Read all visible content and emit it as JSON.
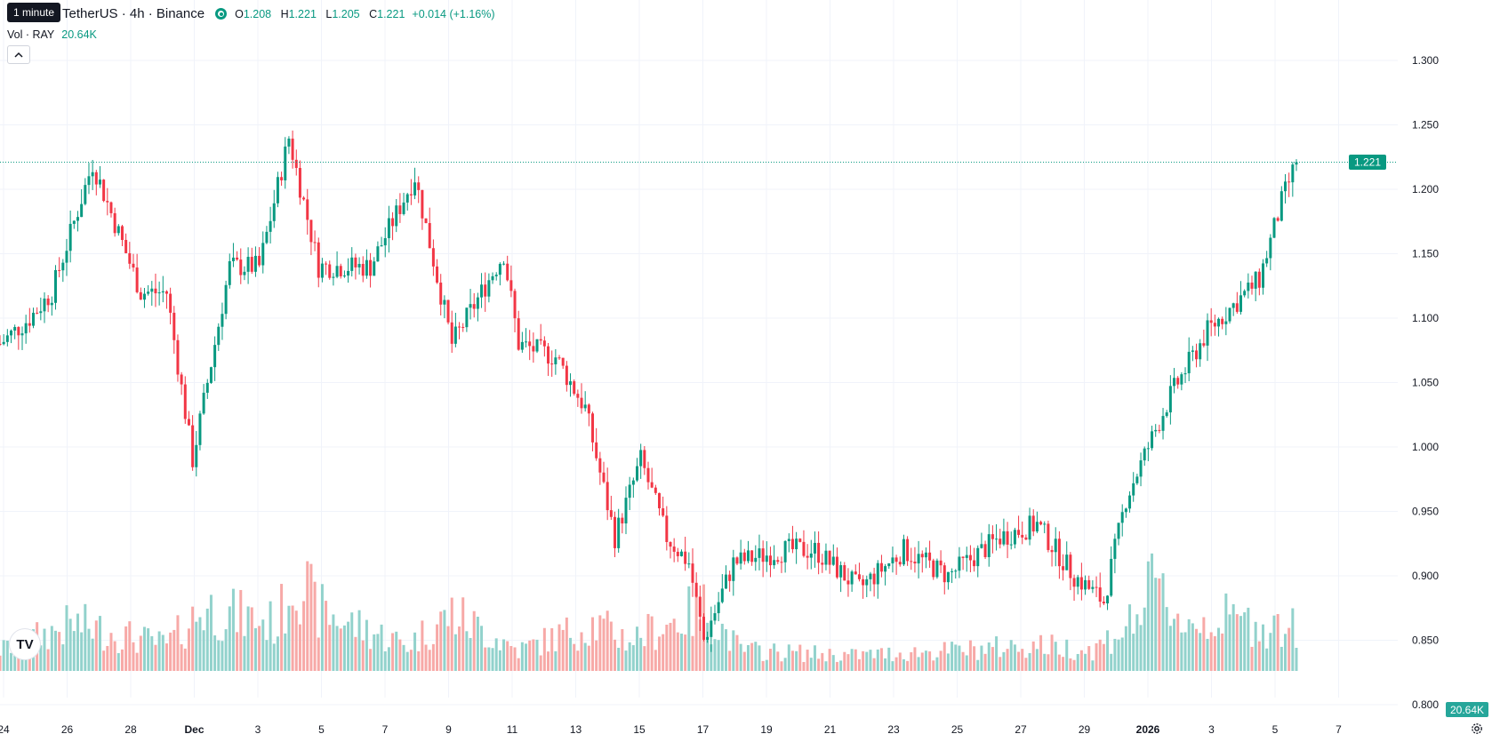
{
  "tooltip": "1 minute",
  "symbol": {
    "title": "TetherUS · 4h · Binance",
    "o_label": "O",
    "o": "1.208",
    "h_label": "H",
    "h": "1.221",
    "l_label": "L",
    "l": "1.205",
    "c_label": "C",
    "c": "1.221",
    "change": "+0.014 (+1.16%)"
  },
  "volume_legend": {
    "label": "Vol · RAY",
    "value": "20.64K"
  },
  "price_label": "1.221",
  "volume_label": "20.64K",
  "logo_text": "TV",
  "collapse_icon": "chevron-up-icon",
  "settings_icon": "gear-icon",
  "colors": {
    "up": "#089981",
    "down": "#f23645",
    "up_vol": "#92d2cc",
    "down_vol": "#f7a9a7",
    "grid": "#f0f3fa",
    "axis_text": "#131722"
  },
  "chart_data": {
    "type": "candlestick",
    "interval": "4h",
    "ylim": [
      0.83,
      1.31
    ],
    "y_ticks": [
      "1.300",
      "1.250",
      "1.200",
      "1.150",
      "1.100",
      "1.050",
      "1.000",
      "0.950",
      "0.900",
      "0.850",
      "0.800"
    ],
    "x_ticks": [
      "24",
      "26",
      "28",
      "Dec",
      "3",
      "5",
      "7",
      "9",
      "11",
      "13",
      "15",
      "17",
      "19",
      "21",
      "23",
      "25",
      "27",
      "29",
      "2026",
      "3",
      "5",
      "7"
    ],
    "last_price": 1.221,
    "price_keyframes": [
      [
        0,
        1.08
      ],
      [
        8,
        1.1
      ],
      [
        14,
        1.12
      ],
      [
        25,
        1.22
      ],
      [
        38,
        1.12
      ],
      [
        45,
        1.12
      ],
      [
        52,
        0.99
      ],
      [
        62,
        1.14
      ],
      [
        70,
        1.14
      ],
      [
        78,
        1.24
      ],
      [
        86,
        1.14
      ],
      [
        100,
        1.14
      ],
      [
        112,
        1.21
      ],
      [
        122,
        1.08
      ],
      [
        136,
        1.15
      ],
      [
        140,
        1.08
      ],
      [
        150,
        1.07
      ],
      [
        158,
        1.03
      ],
      [
        166,
        0.93
      ],
      [
        173,
        0.99
      ],
      [
        180,
        0.93
      ],
      [
        186,
        0.91
      ],
      [
        190,
        0.85
      ],
      [
        198,
        0.91
      ],
      [
        212,
        0.92
      ],
      [
        220,
        0.92
      ],
      [
        232,
        0.89
      ],
      [
        244,
        0.92
      ],
      [
        256,
        0.9
      ],
      [
        270,
        0.93
      ],
      [
        280,
        0.94
      ],
      [
        290,
        0.9
      ],
      [
        298,
        0.88
      ],
      [
        304,
        0.96
      ],
      [
        316,
        1.04
      ],
      [
        326,
        1.09
      ],
      [
        340,
        1.13
      ],
      [
        346,
        1.19
      ],
      [
        350,
        1.221
      ]
    ],
    "volume_keyframes": [
      [
        0,
        0.2
      ],
      [
        20,
        0.45
      ],
      [
        45,
        0.25
      ],
      [
        55,
        0.6
      ],
      [
        75,
        0.45
      ],
      [
        80,
        1.0
      ],
      [
        85,
        0.6
      ],
      [
        95,
        0.45
      ],
      [
        110,
        0.25
      ],
      [
        122,
        0.55
      ],
      [
        140,
        0.2
      ],
      [
        160,
        0.45
      ],
      [
        170,
        0.3
      ],
      [
        190,
        0.6
      ],
      [
        200,
        0.2
      ],
      [
        230,
        0.15
      ],
      [
        260,
        0.2
      ],
      [
        280,
        0.25
      ],
      [
        295,
        0.2
      ],
      [
        305,
        0.45
      ],
      [
        312,
        0.8
      ],
      [
        320,
        0.45
      ],
      [
        330,
        0.5
      ],
      [
        350,
        0.4
      ]
    ],
    "candle_count": 351
  }
}
